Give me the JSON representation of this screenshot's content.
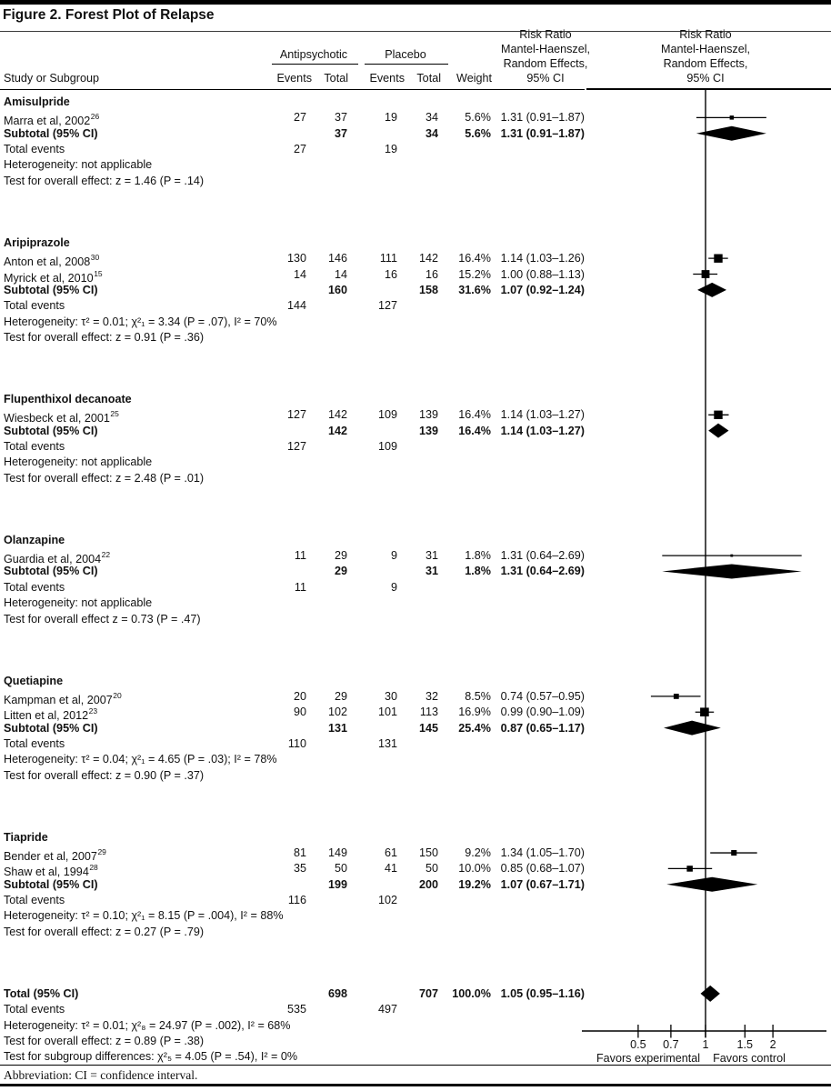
{
  "figure": {
    "title": "Figure 2. Forest Plot of Relapse",
    "abbreviation_note": "Abbreviation: CI = confidence interval."
  },
  "table": {
    "col_study": "Study or Subgroup",
    "group1": "Antipsychotic",
    "group2": "Placebo",
    "col_events": "Events",
    "col_total": "Total",
    "col_weight": "Weight",
    "rr_header": "Risk Ratio\nMantel-Haenszel,\nRandom Effects,\n95% CI"
  },
  "chart_data": {
    "type": "forest",
    "x_scale": "log",
    "x_axis_range_approx": [
      0.3,
      3.5
    ],
    "axis_ticks": [
      0.5,
      0.7,
      1,
      1.5,
      2
    ],
    "axis_labels": {
      "left": "Favors experimental",
      "right": "Favors control"
    },
    "sections": [
      {
        "name": "Amisulpride",
        "studies": [
          {
            "label": "Marra et al, 2002",
            "ref": "26",
            "ap_events": "27",
            "ap_total": "37",
            "pl_events": "19",
            "pl_total": "34",
            "weight": "5.6%",
            "weight_pct": 5.6,
            "rr_text": "1.31 (0.91–1.87)",
            "rr": 1.31,
            "ci_low": 0.91,
            "ci_high": 1.87
          }
        ],
        "subtotal_label": "Subtotal (95% CI)",
        "subtotal": {
          "ap_total": "37",
          "pl_total": "34",
          "weight": "5.6%",
          "rr_text": "1.31 (0.91–1.87)",
          "rr": 1.31,
          "ci_low": 0.91,
          "ci_high": 1.87
        },
        "total_events_label": "Total events",
        "total_events": {
          "ap": "27",
          "pl": "19"
        },
        "heterogeneity": "Heterogeneity: not applicable",
        "test": "Test for overall effect: z = 1.46 (P = .14)"
      },
      {
        "name": "Aripiprazole",
        "studies": [
          {
            "label": "Anton et al, 2008",
            "ref": "30",
            "ap_events": "130",
            "ap_total": "146",
            "pl_events": "111",
            "pl_total": "142",
            "weight": "16.4%",
            "weight_pct": 16.4,
            "rr_text": "1.14 (1.03–1.26)",
            "rr": 1.14,
            "ci_low": 1.03,
            "ci_high": 1.26
          },
          {
            "label": "Myrick et al, 2010",
            "ref": "15",
            "ap_events": "14",
            "ap_total": "14",
            "pl_events": "16",
            "pl_total": "16",
            "weight": "15.2%",
            "weight_pct": 15.2,
            "rr_text": "1.00 (0.88–1.13)",
            "rr": 1.0,
            "ci_low": 0.88,
            "ci_high": 1.13
          }
        ],
        "subtotal_label": "Subtotal (95% CI)",
        "subtotal": {
          "ap_total": "160",
          "pl_total": "158",
          "weight": "31.6%",
          "rr_text": "1.07 (0.92–1.24)",
          "rr": 1.07,
          "ci_low": 0.92,
          "ci_high": 1.24
        },
        "total_events_label": "Total events",
        "total_events": {
          "ap": "144",
          "pl": "127"
        },
        "heterogeneity": "Heterogeneity: τ² = 0.01; χ²₁ = 3.34 (P = .07), I² = 70%",
        "test": "Test for overall effect: z = 0.91 (P = .36)"
      },
      {
        "name": "Flupenthixol decanoate",
        "studies": [
          {
            "label": "Wiesbeck et al, 2001",
            "ref": "25",
            "ap_events": "127",
            "ap_total": "142",
            "pl_events": "109",
            "pl_total": "139",
            "weight": "16.4%",
            "weight_pct": 16.4,
            "rr_text": "1.14 (1.03–1.27)",
            "rr": 1.14,
            "ci_low": 1.03,
            "ci_high": 1.27
          }
        ],
        "subtotal_label": "Subtotal (95% CI)",
        "subtotal": {
          "ap_total": "142",
          "pl_total": "139",
          "weight": "16.4%",
          "rr_text": "1.14 (1.03–1.27)",
          "rr": 1.14,
          "ci_low": 1.03,
          "ci_high": 1.27
        },
        "total_events_label": "Total events",
        "total_events": {
          "ap": "127",
          "pl": "109"
        },
        "heterogeneity": "Heterogeneity: not applicable",
        "test": "Test for overall effect: z = 2.48 (P = .01)"
      },
      {
        "name": "Olanzapine",
        "studies": [
          {
            "label": "Guardia et al, 2004",
            "ref": "22",
            "ap_events": "11",
            "ap_total": "29",
            "pl_events": "9",
            "pl_total": "31",
            "weight": "1.8%",
            "weight_pct": 1.8,
            "rr_text": "1.31 (0.64–2.69)",
            "rr": 1.31,
            "ci_low": 0.64,
            "ci_high": 2.69
          }
        ],
        "subtotal_label": "Subtotal (95% CI)",
        "subtotal": {
          "ap_total": "29",
          "pl_total": "31",
          "weight": "1.8%",
          "rr_text": "1.31 (0.64–2.69)",
          "rr": 1.31,
          "ci_low": 0.64,
          "ci_high": 2.69
        },
        "total_events_label": "Total events",
        "total_events": {
          "ap": "11",
          "pl": "9"
        },
        "heterogeneity": "Heterogeneity: not applicable",
        "test": "Test for overall effect z = 0.73 (P = .47)"
      },
      {
        "name": "Quetiapine",
        "studies": [
          {
            "label": "Kampman et al, 2007",
            "ref": "20",
            "ap_events": "20",
            "ap_total": "29",
            "pl_events": "30",
            "pl_total": "32",
            "weight": "8.5%",
            "weight_pct": 8.5,
            "rr_text": "0.74 (0.57–0.95)",
            "rr": 0.74,
            "ci_low": 0.57,
            "ci_high": 0.95
          },
          {
            "label": "Litten et al, 2012",
            "ref": "23",
            "ap_events": "90",
            "ap_total": "102",
            "pl_events": "101",
            "pl_total": "113",
            "weight": "16.9%",
            "weight_pct": 16.9,
            "rr_text": "0.99 (0.90–1.09)",
            "rr": 0.99,
            "ci_low": 0.9,
            "ci_high": 1.09
          }
        ],
        "subtotal_label": "Subtotal (95% CI)",
        "subtotal": {
          "ap_total": "131",
          "pl_total": "145",
          "weight": "25.4%",
          "rr_text": "0.87 (0.65–1.17)",
          "rr": 0.87,
          "ci_low": 0.65,
          "ci_high": 1.17
        },
        "total_events_label": "Total events",
        "total_events": {
          "ap": "110",
          "pl": "131"
        },
        "heterogeneity": "Heterogeneity: τ² = 0.04; χ²₁ = 4.65 (P = .03); I² = 78%",
        "test": "Test for overall effect: z = 0.90 (P = .37)"
      },
      {
        "name": "Tiapride",
        "studies": [
          {
            "label": "Bender et al, 2007",
            "ref": "29",
            "ap_events": "81",
            "ap_total": "149",
            "pl_events": "61",
            "pl_total": "150",
            "weight": "9.2%",
            "weight_pct": 9.2,
            "rr_text": "1.34 (1.05–1.70)",
            "rr": 1.34,
            "ci_low": 1.05,
            "ci_high": 1.7
          },
          {
            "label": "Shaw et al, 1994",
            "ref": "28",
            "ap_events": "35",
            "ap_total": "50",
            "pl_events": "41",
            "pl_total": "50",
            "weight": "10.0%",
            "weight_pct": 10.0,
            "rr_text": "0.85 (0.68–1.07)",
            "rr": 0.85,
            "ci_low": 0.68,
            "ci_high": 1.07
          }
        ],
        "subtotal_label": "Subtotal (95% CI)",
        "subtotal": {
          "ap_total": "199",
          "pl_total": "200",
          "weight": "19.2%",
          "rr_text": "1.07 (0.67–1.71)",
          "rr": 1.07,
          "ci_low": 0.67,
          "ci_high": 1.71
        },
        "total_events_label": "Total events",
        "total_events": {
          "ap": "116",
          "pl": "102"
        },
        "heterogeneity": "Heterogeneity: τ² = 0.10; χ²₁ = 8.15 (P = .004), I² = 88%",
        "test": "Test for overall effect: z = 0.27 (P = .79)"
      }
    ],
    "total": {
      "label": "Total (95% CI)",
      "ap_total": "698",
      "pl_total": "707",
      "weight": "100.0%",
      "rr_text": "1.05 (0.95–1.16)",
      "rr": 1.05,
      "ci_low": 0.95,
      "ci_high": 1.16,
      "total_events_label": "Total events",
      "total_events": {
        "ap": "535",
        "pl": "497"
      },
      "heterogeneity": "Heterogeneity: τ² = 0.01; χ²₈ = 24.97 (P = .002), I² = 68%",
      "test": "Test for overall effect: z = 0.89 (P = .38)",
      "subgroup_test": "Test for subgroup differences: χ²₅ = 4.05 (P = .54), I² = 0%"
    }
  }
}
